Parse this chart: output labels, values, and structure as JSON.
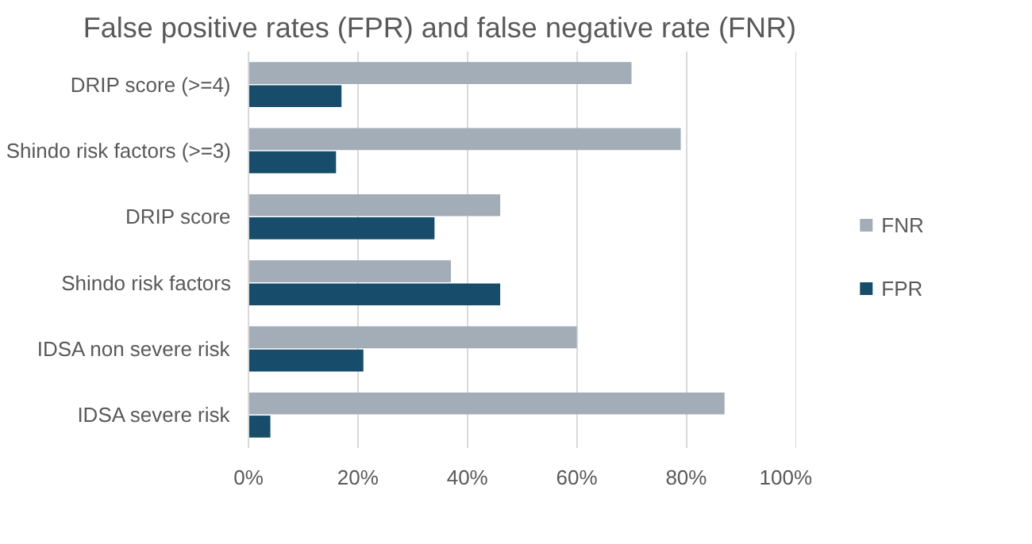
{
  "chart_data": {
    "type": "bar",
    "orientation": "horizontal",
    "title": "False positive rates (FPR) and false negative rate (FNR)",
    "categories": [
      "DRIP score (>=4)",
      "Shindo risk factors (>=3)",
      "DRIP score",
      "Shindo risk factors",
      "IDSA non severe risk",
      "IDSA severe risk"
    ],
    "series": [
      {
        "name": "FNR",
        "color": "#a2adb8",
        "values": [
          70,
          79,
          46,
          37,
          60,
          87
        ]
      },
      {
        "name": "FPR",
        "color": "#174c6b",
        "values": [
          17,
          16,
          34,
          46,
          21,
          4
        ]
      }
    ],
    "xlim": [
      0,
      100
    ],
    "xticks": [
      {
        "value": 0,
        "label": "0%"
      },
      {
        "value": 20,
        "label": "20%"
      },
      {
        "value": 40,
        "label": "40%"
      },
      {
        "value": 60,
        "label": "60%"
      },
      {
        "value": 80,
        "label": "80%"
      },
      {
        "value": 100,
        "label": "100%"
      }
    ],
    "grid": "x",
    "legend": "right"
  }
}
